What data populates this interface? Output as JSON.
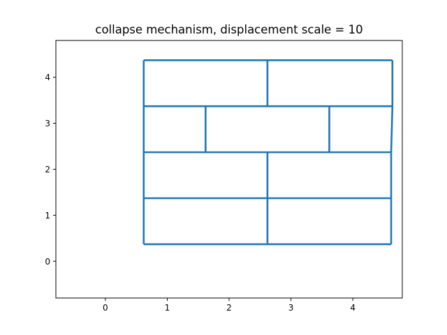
{
  "chart_data": {
    "type": "line",
    "title": "collapse mechanism, displacement scale = 10",
    "xlabel": "",
    "ylabel": "",
    "xlim": [
      -0.8,
      4.8
    ],
    "ylim": [
      -0.8,
      4.8
    ],
    "xticks": [
      0,
      1,
      2,
      3,
      4
    ],
    "yticks": [
      0,
      1,
      2,
      3,
      4
    ],
    "grid": false,
    "legend": "none",
    "line_color": "#1f77b4",
    "series": [
      {
        "segments": [
          [
            [
              0.62,
              0.37
            ],
            [
              4.62,
              0.37
            ]
          ],
          [
            [
              0.62,
              1.37
            ],
            [
              4.62,
              1.37
            ]
          ],
          [
            [
              0.62,
              2.37
            ],
            [
              4.62,
              2.37
            ]
          ],
          [
            [
              0.62,
              3.37
            ],
            [
              4.64,
              3.37
            ]
          ],
          [
            [
              0.62,
              4.37
            ],
            [
              4.64,
              4.37
            ]
          ],
          [
            [
              0.62,
              0.37
            ],
            [
              0.62,
              4.37
            ]
          ],
          [
            [
              4.62,
              0.37
            ],
            [
              4.62,
              2.37
            ]
          ],
          [
            [
              4.62,
              2.37
            ],
            [
              4.64,
              3.37
            ]
          ],
          [
            [
              4.64,
              3.37
            ],
            [
              4.64,
              4.37
            ]
          ],
          [
            [
              2.62,
              0.37
            ],
            [
              2.62,
              2.37
            ]
          ],
          [
            [
              2.62,
              3.37
            ],
            [
              2.62,
              4.37
            ]
          ],
          [
            [
              1.62,
              2.37
            ],
            [
              1.62,
              3.37
            ]
          ],
          [
            [
              3.62,
              2.37
            ],
            [
              3.62,
              3.37
            ]
          ]
        ]
      }
    ]
  }
}
